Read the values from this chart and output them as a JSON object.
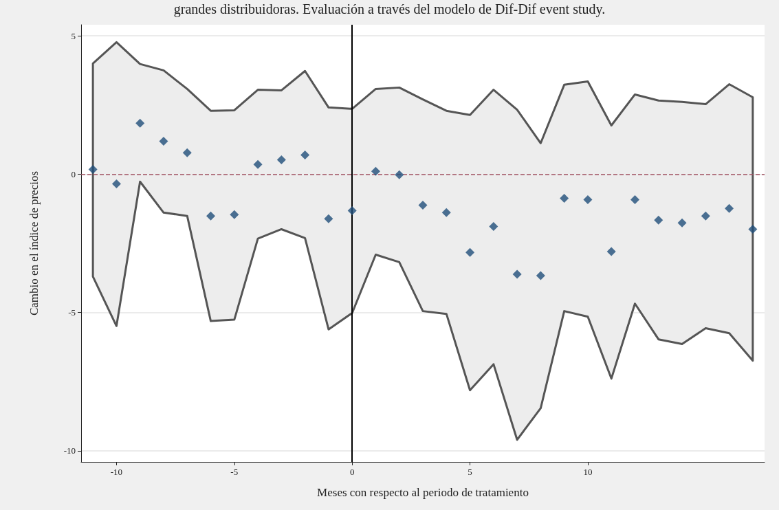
{
  "chart_data": {
    "type": "scatter",
    "title": "grandes distribuidoras. Evaluación a través del modelo de Dif-Dif event study.",
    "xlabel": "Meses con respecto al periodo de tratamiento",
    "ylabel": "Cambio en el índice de precios",
    "x": [
      -11,
      -10,
      -9,
      -8,
      -7,
      -6,
      -5,
      -4,
      -3,
      -2,
      -1,
      0,
      1,
      2,
      3,
      4,
      5,
      6,
      7,
      8,
      9,
      10,
      11,
      12,
      13,
      14,
      15,
      16,
      17
    ],
    "series": [
      {
        "color": "#1f4e79",
        "values": [
          0.17,
          -0.35,
          1.84,
          1.19,
          0.77,
          -1.51,
          -1.46,
          0.35,
          0.52,
          0.69,
          -1.61,
          -1.32,
          0.1,
          -0.02,
          -1.12,
          -1.39,
          -2.83,
          -1.89,
          -3.62,
          -3.67,
          -0.87,
          -0.92,
          -2.8,
          -0.92,
          -1.66,
          -1.76,
          -1.51,
          -1.24,
          -1.99
        ],
        "upper": [
          4.0,
          4.77,
          3.98,
          3.75,
          3.08,
          2.29,
          2.31,
          3.05,
          3.03,
          3.73,
          2.41,
          2.36,
          3.08,
          3.13,
          2.7,
          2.29,
          2.14,
          3.05,
          2.33,
          1.12,
          3.23,
          3.35,
          1.76,
          2.88,
          2.66,
          2.61,
          2.53,
          3.25,
          2.78
        ],
        "lower": [
          -3.7,
          -5.49,
          -0.27,
          -1.39,
          -1.51,
          -5.31,
          -5.26,
          -2.33,
          -1.99,
          -2.31,
          -5.61,
          -5.02,
          -2.91,
          -3.18,
          -4.95,
          -5.05,
          -7.81,
          -6.87,
          -9.6,
          -8.46,
          -4.95,
          -5.15,
          -7.39,
          -4.68,
          -5.97,
          -6.14,
          -5.57,
          -5.75,
          -6.74
        ]
      }
    ],
    "xlim": [
      -11.5,
      17.5
    ],
    "ylim": [
      -10.4,
      5.4
    ],
    "xticks": [
      -10,
      -5,
      0,
      5,
      10
    ],
    "yticks": [
      -10,
      -5,
      0,
      5
    ],
    "ref_lines": [
      {
        "axis": "y",
        "value": 0,
        "color": "#a05060",
        "line_style": "dashed"
      },
      {
        "axis": "x",
        "value": 0,
        "color": "#000000",
        "line_style": "solid"
      }
    ],
    "grid": "y",
    "marker": "diamond"
  }
}
